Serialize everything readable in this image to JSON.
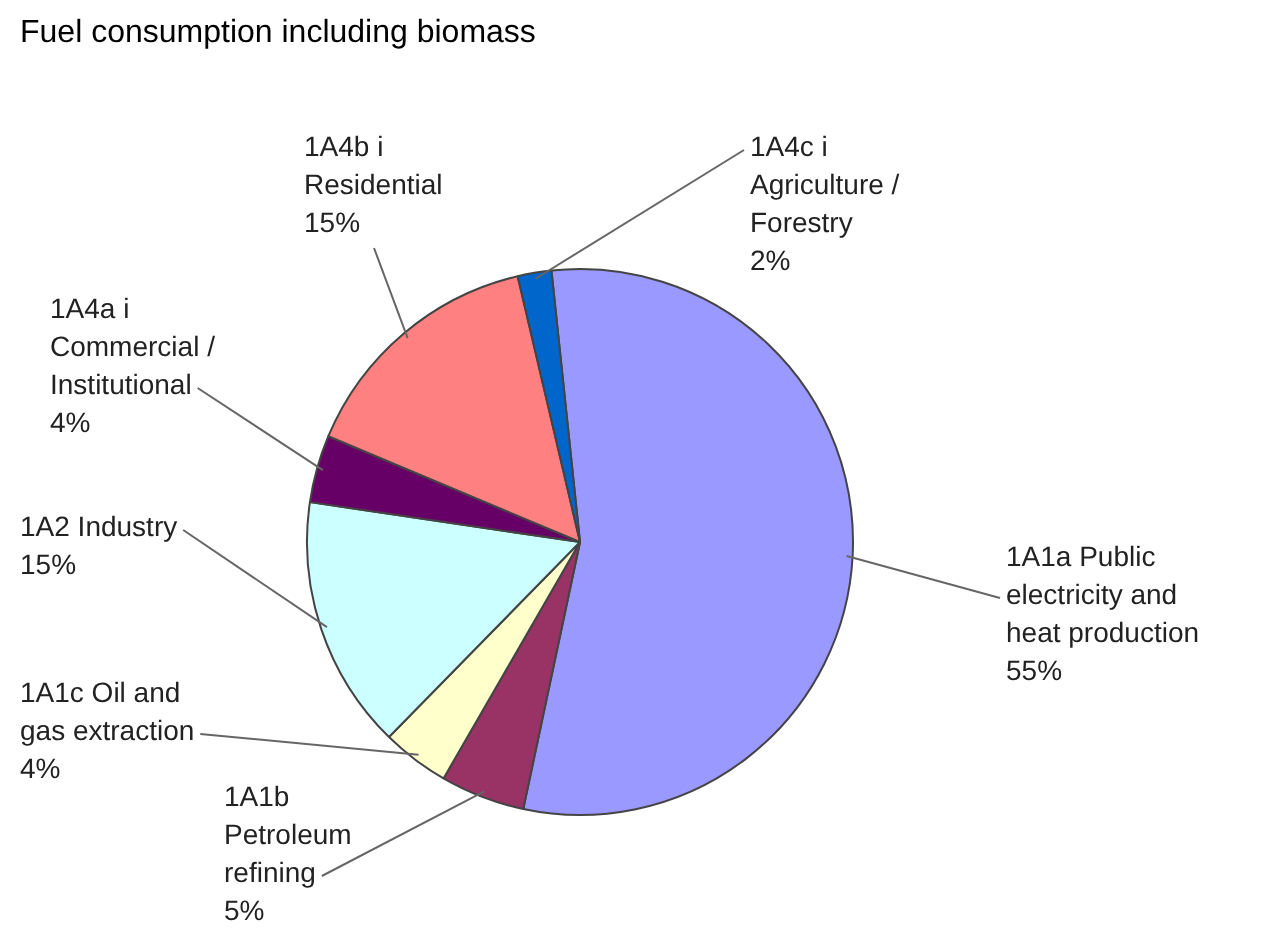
{
  "chart_data": {
    "type": "pie",
    "title": "Fuel consumption including biomass",
    "categories": [
      "1A1a Public electricity and heat production",
      "1A1b Petroleum refining",
      "1A1c Oil and gas extraction",
      "1A2 Industry",
      "1A4a i Commercial / Institutional",
      "1A4b i Residential",
      "1A4c i Agriculture / Forestry"
    ],
    "values": [
      55,
      5,
      4,
      15,
      4,
      15,
      2
    ],
    "value_labels": [
      "55%",
      "5%",
      "4%",
      "15%",
      "4%",
      "15%",
      "2%"
    ],
    "colors": [
      "#9999ff",
      "#993366",
      "#ffffcc",
      "#ccffff",
      "#660066",
      "#ff8080",
      "#0066cc"
    ],
    "legend": false
  }
}
